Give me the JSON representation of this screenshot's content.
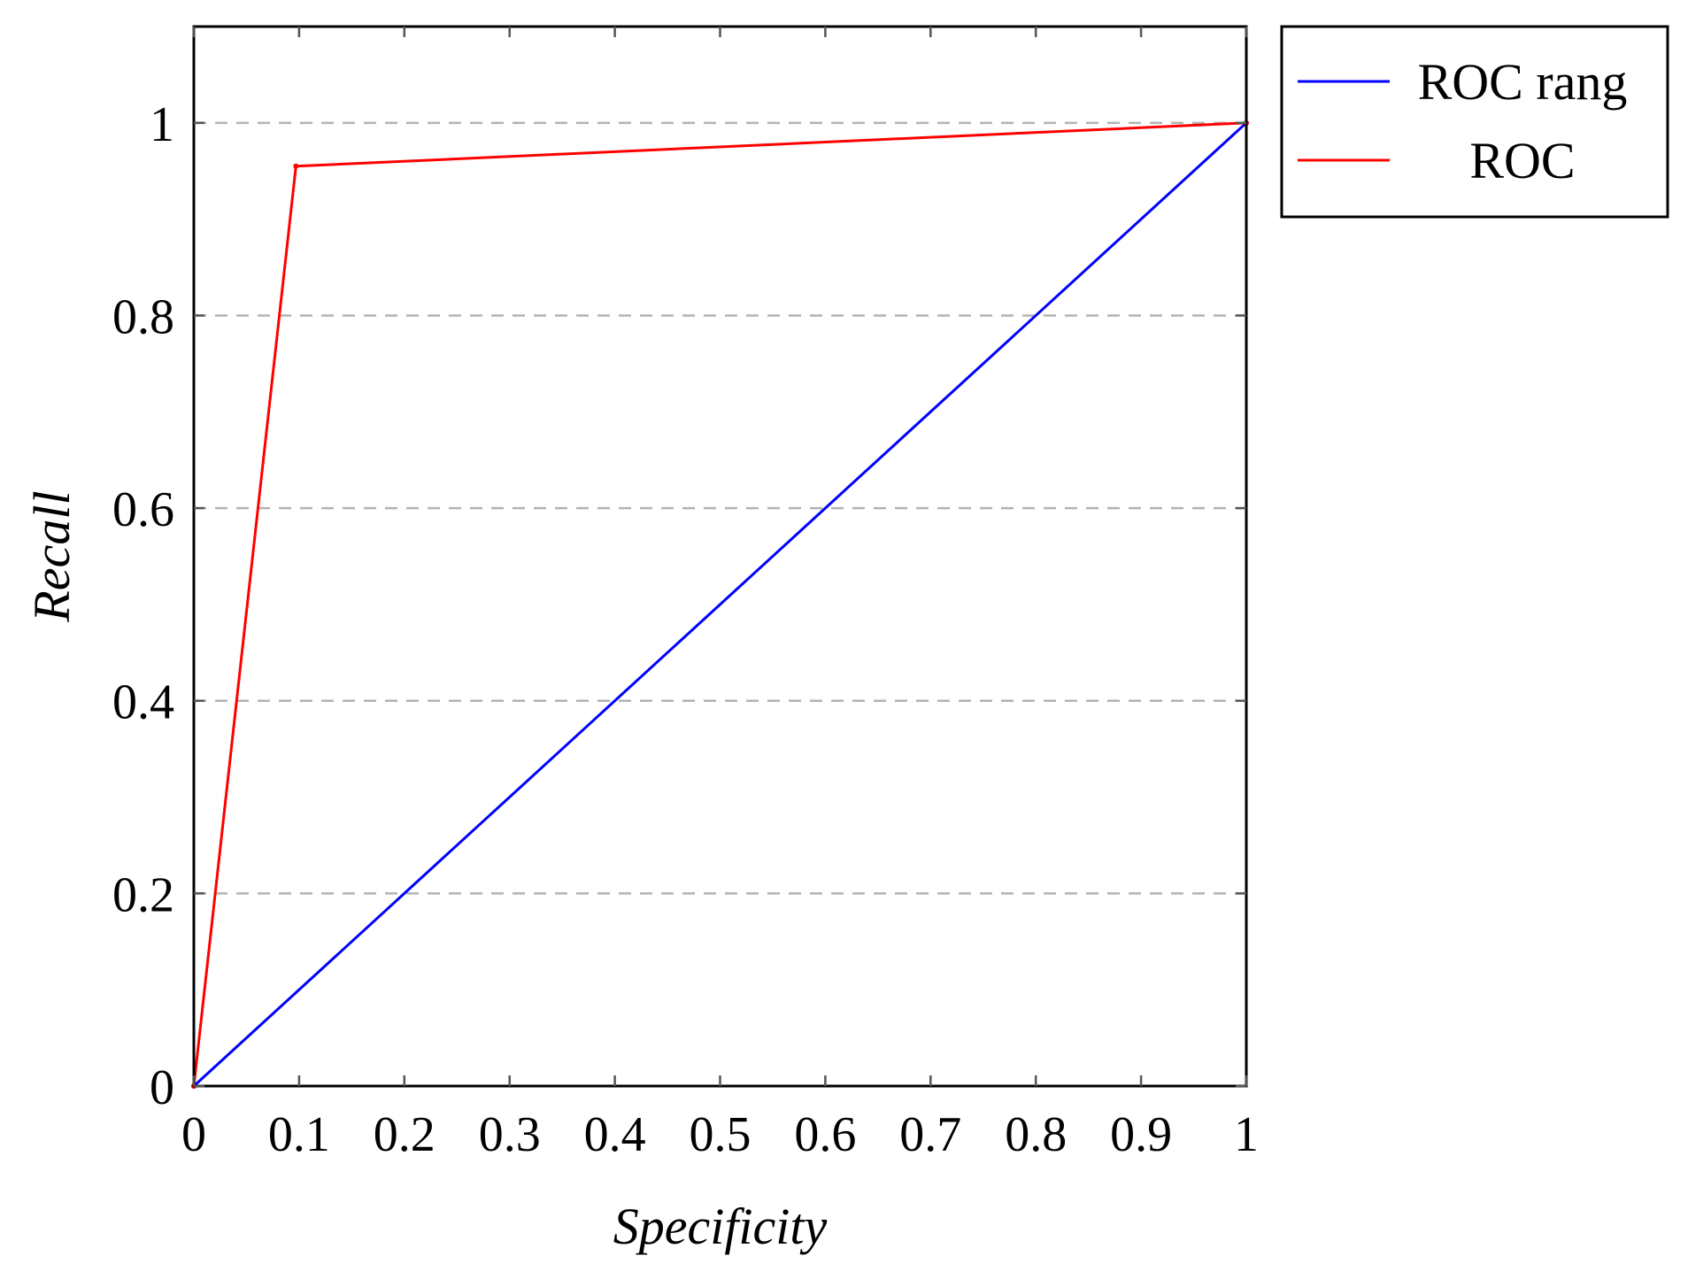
{
  "chart_data": {
    "type": "line",
    "xlabel": "Specificity",
    "ylabel": "Recall",
    "xlim": [
      0,
      1
    ],
    "ylim": [
      0,
      1.1
    ],
    "x_ticks": [
      0,
      0.1,
      0.2,
      0.3,
      0.4,
      0.5,
      0.6,
      0.7,
      0.8,
      0.9,
      1
    ],
    "x_tick_labels": [
      "0",
      "0.1",
      "0.2",
      "0.3",
      "0.4",
      "0.5",
      "0.6",
      "0.7",
      "0.8",
      "0.9",
      "1"
    ],
    "y_ticks": [
      0,
      0.2,
      0.4,
      0.6,
      0.8,
      1
    ],
    "y_tick_labels": [
      "0",
      "0.2",
      "0.4",
      "0.6",
      "0.8",
      "1"
    ],
    "grid": "horizontal dashed",
    "legend_position": "outside top-right",
    "series": [
      {
        "name": "ROC rang",
        "color": "#0000ff",
        "x": [
          0,
          1
        ],
        "y": [
          0,
          1
        ]
      },
      {
        "name": "ROC",
        "color": "#ff0000",
        "x": [
          0,
          0.097,
          1
        ],
        "y": [
          0,
          0.955,
          1
        ]
      }
    ]
  }
}
